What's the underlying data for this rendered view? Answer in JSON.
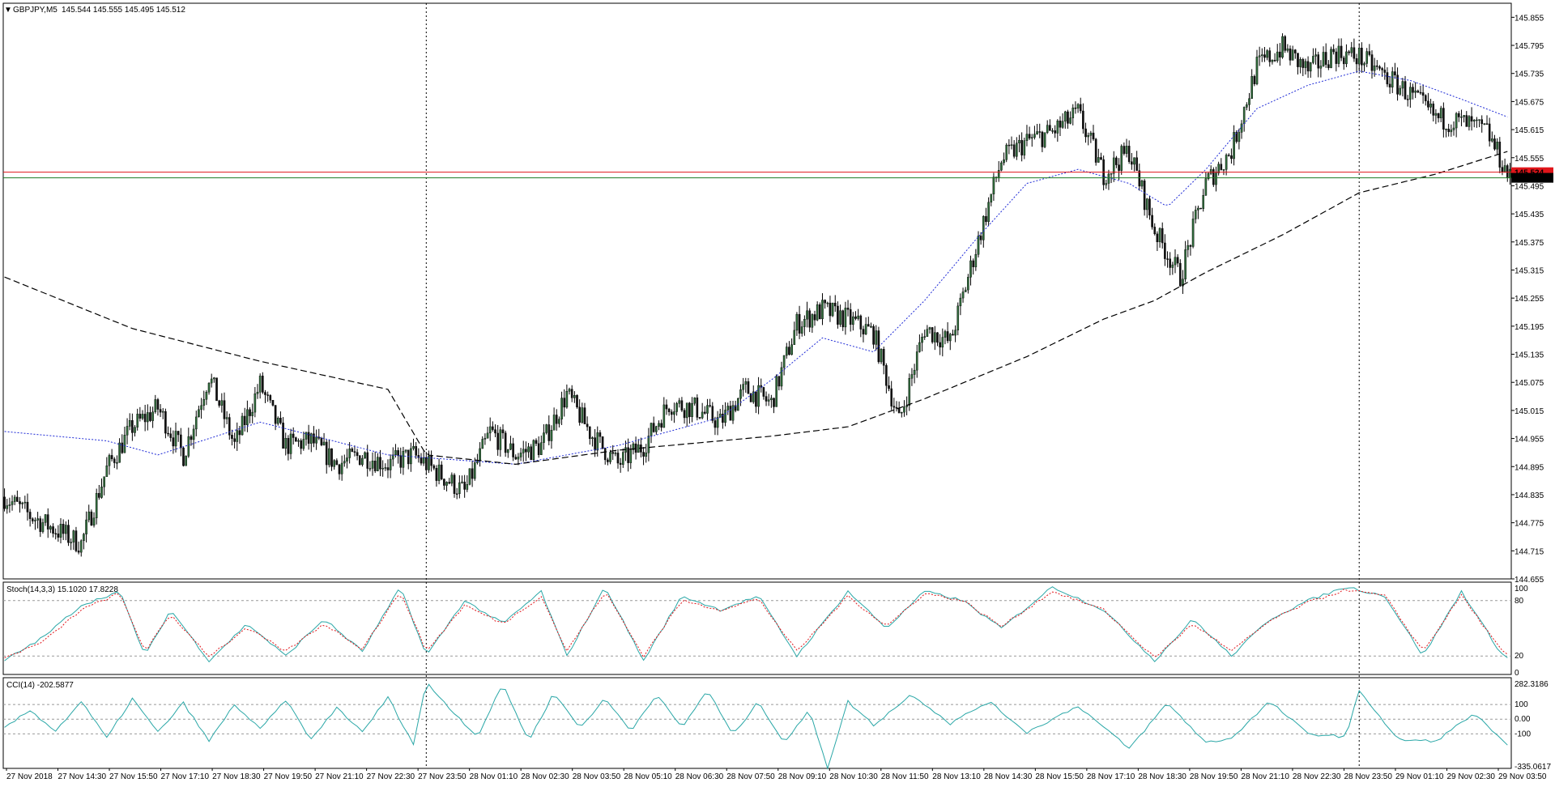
{
  "header": {
    "symbol": "GBPJPY,M5",
    "ohlc": "145.544 145.555 145.495 145.512"
  },
  "colors": {
    "candle_bull": "#2f6a3a",
    "candle_bear": "#111111",
    "wick": "#000000",
    "ma_fast": "#1f2bd6",
    "ma_slow": "#000000",
    "hline_red": "#e0151a",
    "hline_green": "#1b7a22",
    "stoch_main": "#2aa7a7",
    "stoch_signal": "#e0151a",
    "cci": "#2aa7a7",
    "grid_sep": "#000000",
    "price_box": "#000000"
  },
  "chart_data": [
    {
      "type": "candlestick",
      "title": "GBPJPY,M5",
      "price_ticks": [
        "145.855",
        "145.795",
        "145.735",
        "145.675",
        "145.615",
        "145.555",
        "145.495",
        "145.435",
        "145.375",
        "145.315",
        "145.255",
        "145.195",
        "145.135",
        "145.075",
        "145.015",
        "144.955",
        "144.895",
        "144.835",
        "144.775",
        "144.715",
        "144.655"
      ],
      "ylim": [
        144.655,
        145.885
      ],
      "time_labels": [
        "27 Nov 2018",
        "27 Nov 14:30",
        "27 Nov 15:50",
        "27 Nov 17:10",
        "27 Nov 18:30",
        "27 Nov 19:50",
        "27 Nov 21:10",
        "27 Nov 22:30",
        "27 Nov 23:50",
        "28 Nov 01:10",
        "28 Nov 02:30",
        "28 Nov 03:50",
        "28 Nov 05:10",
        "28 Nov 06:30",
        "28 Nov 07:50",
        "28 Nov 09:10",
        "28 Nov 10:30",
        "28 Nov 11:50",
        "28 Nov 13:10",
        "28 Nov 14:30",
        "28 Nov 15:50",
        "28 Nov 17:10",
        "28 Nov 18:30",
        "28 Nov 19:50",
        "28 Nov 21:10",
        "28 Nov 22:30",
        "28 Nov 23:50",
        "29 Nov 01:10",
        "29 Nov 02:30",
        "29 Nov 03:50"
      ],
      "close_path": [
        [
          0,
          144.83
        ],
        [
          10,
          144.79
        ],
        [
          20,
          144.76
        ],
        [
          30,
          144.73
        ],
        [
          40,
          144.89
        ],
        [
          50,
          144.98
        ],
        [
          60,
          145.02
        ],
        [
          70,
          144.92
        ],
        [
          80,
          145.09
        ],
        [
          90,
          144.94
        ],
        [
          100,
          145.07
        ],
        [
          110,
          144.94
        ],
        [
          120,
          144.95
        ],
        [
          130,
          144.9
        ],
        [
          140,
          144.92
        ],
        [
          150,
          144.9
        ],
        [
          160,
          144.92
        ],
        [
          170,
          144.88
        ],
        [
          180,
          144.84
        ],
        [
          190,
          144.97
        ],
        [
          200,
          144.92
        ],
        [
          210,
          144.94
        ],
        [
          220,
          145.05
        ],
        [
          230,
          144.96
        ],
        [
          240,
          144.9
        ],
        [
          250,
          144.94
        ],
        [
          260,
          145.03
        ],
        [
          270,
          145.02
        ],
        [
          280,
          144.99
        ],
        [
          290,
          145.06
        ],
        [
          300,
          145.03
        ],
        [
          310,
          145.2
        ],
        [
          320,
          145.23
        ],
        [
          330,
          145.21
        ],
        [
          340,
          145.18
        ],
        [
          350,
          144.99
        ],
        [
          360,
          145.19
        ],
        [
          370,
          145.16
        ],
        [
          380,
          145.36
        ],
        [
          390,
          145.55
        ],
        [
          400,
          145.59
        ],
        [
          410,
          145.61
        ],
        [
          420,
          145.65
        ],
        [
          430,
          145.52
        ],
        [
          440,
          145.57
        ],
        [
          450,
          145.4
        ],
        [
          460,
          145.3
        ],
        [
          470,
          145.5
        ],
        [
          480,
          145.57
        ],
        [
          490,
          145.75
        ],
        [
          500,
          145.79
        ],
        [
          510,
          145.74
        ],
        [
          520,
          145.78
        ],
        [
          530,
          145.77
        ],
        [
          540,
          145.73
        ],
        [
          550,
          145.69
        ],
        [
          560,
          145.64
        ],
        [
          570,
          145.63
        ],
        [
          580,
          145.61
        ],
        [
          589,
          145.51
        ]
      ],
      "n_bars": 590,
      "ma_fast_path": [
        [
          0,
          144.97
        ],
        [
          40,
          144.95
        ],
        [
          60,
          144.92
        ],
        [
          100,
          144.99
        ],
        [
          150,
          144.92
        ],
        [
          200,
          144.9
        ],
        [
          240,
          144.94
        ],
        [
          280,
          145.0
        ],
        [
          300,
          145.08
        ],
        [
          320,
          145.17
        ],
        [
          340,
          145.14
        ],
        [
          360,
          145.25
        ],
        [
          380,
          145.38
        ],
        [
          400,
          145.5
        ],
        [
          420,
          145.53
        ],
        [
          440,
          145.5
        ],
        [
          455,
          145.45
        ],
        [
          470,
          145.53
        ],
        [
          490,
          145.66
        ],
        [
          510,
          145.71
        ],
        [
          530,
          145.74
        ],
        [
          550,
          145.72
        ],
        [
          570,
          145.68
        ],
        [
          589,
          145.64
        ]
      ],
      "ma_slow_path": [
        [
          0,
          145.3
        ],
        [
          50,
          145.19
        ],
        [
          100,
          145.12
        ],
        [
          150,
          145.06
        ],
        [
          165,
          144.92
        ],
        [
          200,
          144.9
        ],
        [
          240,
          144.93
        ],
        [
          300,
          144.96
        ],
        [
          330,
          144.98
        ],
        [
          360,
          145.04
        ],
        [
          400,
          145.13
        ],
        [
          430,
          145.21
        ],
        [
          450,
          145.25
        ],
        [
          470,
          145.31
        ],
        [
          500,
          145.39
        ],
        [
          530,
          145.48
        ],
        [
          560,
          145.52
        ],
        [
          589,
          145.57
        ]
      ],
      "hlines": [
        {
          "name": "ask",
          "price": 145.524,
          "color": "red",
          "label": "145.524"
        },
        {
          "name": "bid",
          "price": 145.512,
          "color": "green",
          "label": "145.512"
        }
      ],
      "period_separators_bar": [
        165,
        530
      ],
      "current_price_label": "145.512"
    },
    {
      "type": "line",
      "title": "Stoch(14,3,3) 15.1020 17.8228",
      "ylim": [
        0,
        100
      ],
      "levels": [
        20,
        80
      ],
      "ticks": [
        "100",
        "80",
        "20",
        "0"
      ],
      "series": [
        {
          "name": "Main",
          "values_path": [
            [
              0,
              15
            ],
            [
              15,
              40
            ],
            [
              30,
              75
            ],
            [
              45,
              90
            ],
            [
              55,
              20
            ],
            [
              65,
              70
            ],
            [
              80,
              15
            ],
            [
              95,
              55
            ],
            [
              110,
              20
            ],
            [
              125,
              60
            ],
            [
              140,
              25
            ],
            [
              155,
              95
            ],
            [
              165,
              20
            ],
            [
              180,
              80
            ],
            [
              195,
              55
            ],
            [
              210,
              90
            ],
            [
              220,
              20
            ],
            [
              235,
              95
            ],
            [
              250,
              15
            ],
            [
              265,
              85
            ],
            [
              280,
              70
            ],
            [
              295,
              85
            ],
            [
              310,
              20
            ],
            [
              330,
              90
            ],
            [
              345,
              50
            ],
            [
              360,
              90
            ],
            [
              375,
              80
            ],
            [
              390,
              50
            ],
            [
              410,
              95
            ],
            [
              430,
              70
            ],
            [
              450,
              15
            ],
            [
              465,
              60
            ],
            [
              480,
              20
            ],
            [
              495,
              60
            ],
            [
              510,
              80
            ],
            [
              525,
              95
            ],
            [
              540,
              85
            ],
            [
              555,
              20
            ],
            [
              570,
              90
            ],
            [
              585,
              25
            ],
            [
              589,
              15
            ]
          ]
        },
        {
          "name": "Signal",
          "values_path": [
            [
              0,
              18
            ],
            [
              15,
              35
            ],
            [
              30,
              70
            ],
            [
              45,
              88
            ],
            [
              55,
              25
            ],
            [
              65,
              65
            ],
            [
              80,
              20
            ],
            [
              95,
              50
            ],
            [
              110,
              25
            ],
            [
              125,
              55
            ],
            [
              140,
              28
            ],
            [
              155,
              90
            ],
            [
              165,
              25
            ],
            [
              180,
              75
            ],
            [
              195,
              55
            ],
            [
              210,
              85
            ],
            [
              220,
              25
            ],
            [
              235,
              90
            ],
            [
              250,
              20
            ],
            [
              265,
              80
            ],
            [
              280,
              70
            ],
            [
              295,
              82
            ],
            [
              310,
              25
            ],
            [
              330,
              85
            ],
            [
              345,
              52
            ],
            [
              360,
              88
            ],
            [
              375,
              80
            ],
            [
              390,
              52
            ],
            [
              410,
              90
            ],
            [
              430,
              70
            ],
            [
              450,
              18
            ],
            [
              465,
              55
            ],
            [
              480,
              25
            ],
            [
              495,
              58
            ],
            [
              510,
              78
            ],
            [
              525,
              92
            ],
            [
              540,
              85
            ],
            [
              555,
              25
            ],
            [
              570,
              86
            ],
            [
              585,
              28
            ],
            [
              589,
              18
            ]
          ]
        }
      ]
    },
    {
      "type": "line",
      "title": "CCI(14) -202.5877",
      "ylim": [
        -335.0617,
        282.3186
      ],
      "levels": [
        100,
        0,
        -100
      ],
      "ticks": [
        "282.3186",
        "100",
        "0.00",
        "-100",
        "-335.0617"
      ],
      "series": [
        {
          "name": "CCI",
          "values_path": [
            [
              0,
              -60
            ],
            [
              10,
              60
            ],
            [
              20,
              -80
            ],
            [
              30,
              120
            ],
            [
              40,
              -130
            ],
            [
              50,
              140
            ],
            [
              60,
              -90
            ],
            [
              70,
              110
            ],
            [
              80,
              -150
            ],
            [
              90,
              100
            ],
            [
              100,
              -70
            ],
            [
              110,
              130
            ],
            [
              120,
              -140
            ],
            [
              130,
              80
            ],
            [
              140,
              -90
            ],
            [
              150,
              150
            ],
            [
              160,
              -170
            ],
            [
              165,
              250
            ],
            [
              175,
              60
            ],
            [
              185,
              -120
            ],
            [
              195,
              240
            ],
            [
              205,
              -150
            ],
            [
              215,
              180
            ],
            [
              225,
              -60
            ],
            [
              235,
              140
            ],
            [
              245,
              -80
            ],
            [
              255,
              170
            ],
            [
              265,
              -60
            ],
            [
              275,
              200
            ],
            [
              285,
              -110
            ],
            [
              295,
              120
            ],
            [
              305,
              -160
            ],
            [
              315,
              60
            ],
            [
              322,
              -330
            ],
            [
              330,
              120
            ],
            [
              340,
              -40
            ],
            [
              355,
              170
            ],
            [
              370,
              -30
            ],
            [
              385,
              120
            ],
            [
              400,
              -90
            ],
            [
              420,
              90
            ],
            [
              440,
              -200
            ],
            [
              455,
              110
            ],
            [
              470,
              -160
            ],
            [
              480,
              -130
            ],
            [
              495,
              120
            ],
            [
              510,
              -100
            ],
            [
              525,
              -120
            ],
            [
              530,
              200
            ],
            [
              545,
              -140
            ],
            [
              560,
              -150
            ],
            [
              575,
              40
            ],
            [
              589,
              -202.59
            ]
          ]
        }
      ]
    }
  ]
}
